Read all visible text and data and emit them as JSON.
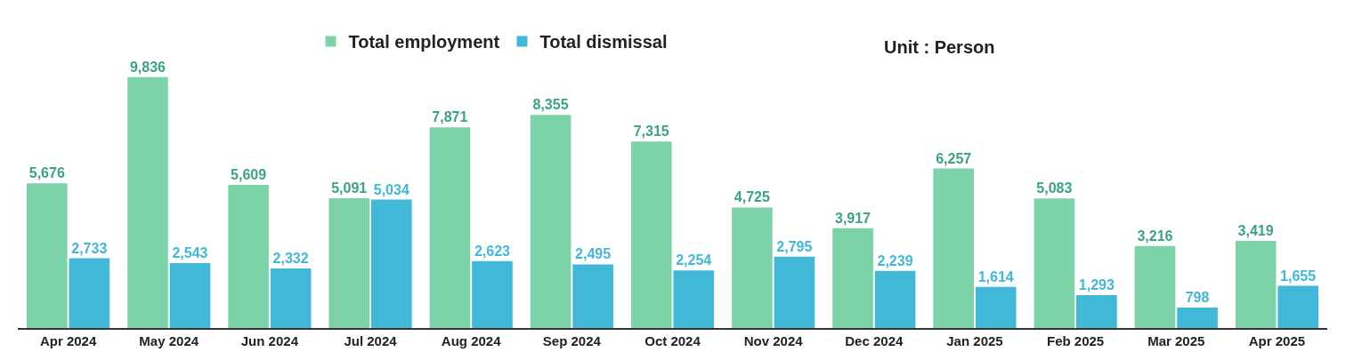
{
  "chart_data": {
    "type": "bar",
    "categories": [
      "Apr 2024",
      "May 2024",
      "Jun 2024",
      "Jul 2024",
      "Aug 2024",
      "Sep 2024",
      "Oct 2024",
      "Nov 2024",
      "Dec 2024",
      "Jan 2025",
      "Feb 2025",
      "Mar 2025",
      "Apr 2025"
    ],
    "series": [
      {
        "name": "Total employment",
        "color": "#7dd3a8",
        "values": [
          5676,
          9836,
          5609,
          5091,
          7871,
          8355,
          7315,
          4725,
          3917,
          6257,
          5083,
          3216,
          3419
        ],
        "value_labels": [
          "5,676",
          "9,836",
          "5,609",
          "5,091",
          "7,871",
          "8,355",
          "7,315",
          "4,725",
          "3,917",
          "6,257",
          "5,083",
          "3,216",
          "3,419"
        ]
      },
      {
        "name": "Total dismissal",
        "color": "#41b8d8",
        "values": [
          2733,
          2543,
          2332,
          5034,
          2623,
          2495,
          2254,
          2795,
          2239,
          1614,
          1293,
          798,
          1655
        ],
        "value_labels": [
          "2,733",
          "2,543",
          "2,332",
          "5,034",
          "2,623",
          "2,495",
          "2,254",
          "2,795",
          "2,239",
          "1,614",
          "1,293",
          "798",
          "1,655"
        ]
      }
    ],
    "annotations": [
      "Unit : Person"
    ],
    "legend": "top"
  }
}
